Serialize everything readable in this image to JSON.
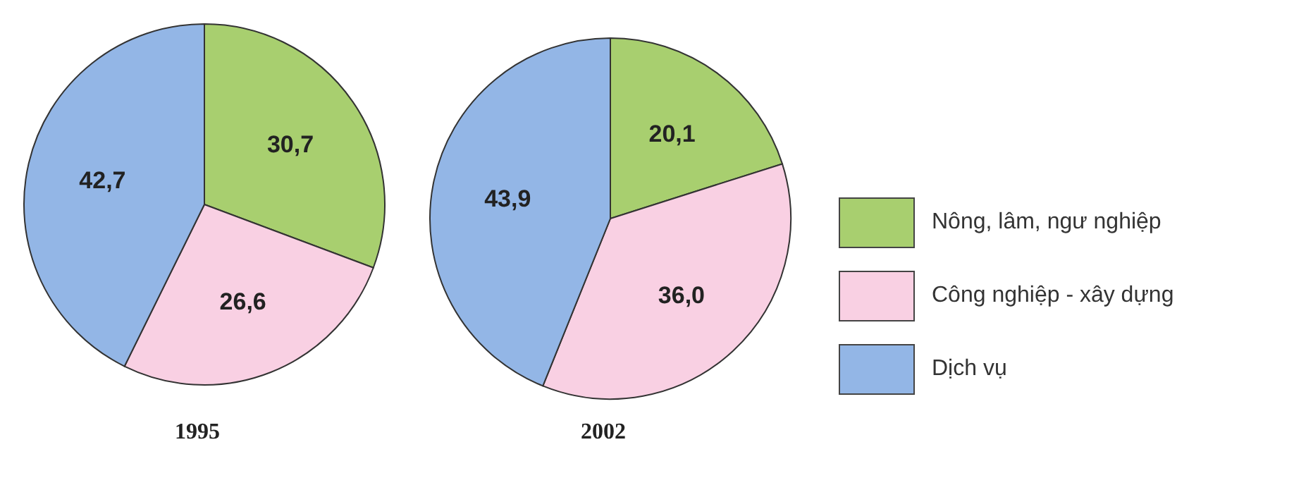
{
  "chart_data": [
    {
      "type": "pie",
      "title": "1995",
      "categories": [
        null,
        null,
        null
      ],
      "values": [
        30.7,
        26.6,
        42.7
      ],
      "value_labels": [
        "30,7",
        "26,6",
        "42,7"
      ],
      "colors": [
        "#a8cf6f",
        "#f9d0e3",
        "#93b6e6"
      ],
      "legend": false
    },
    {
      "type": "pie",
      "title": "2002",
      "categories": [
        "Nông, lâm, ngư nghiệp",
        "Công nghiệp - xây dựng",
        "Dịch vụ"
      ],
      "values": [
        20.1,
        36.0,
        43.9
      ],
      "value_labels": [
        "20,1",
        "36,0",
        "43,9"
      ],
      "colors": [
        "#a8cf6f",
        "#f9d0e3",
        "#93b6e6"
      ],
      "legend": "right"
    }
  ]
}
